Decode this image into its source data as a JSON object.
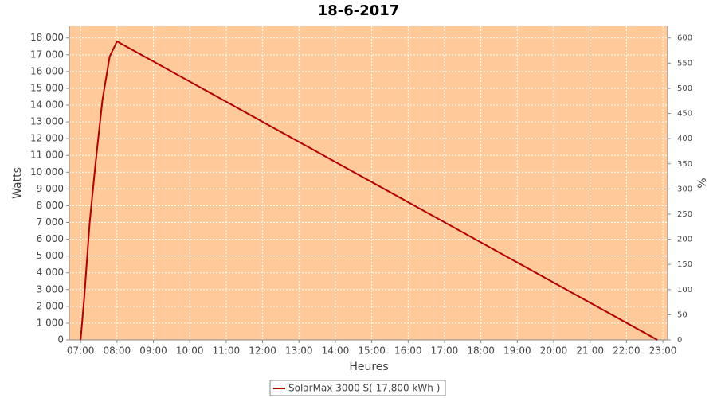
{
  "chart_data": {
    "type": "line",
    "title": "18-6-2017",
    "x_label": "Heures",
    "y_label": "Watts",
    "y2_label": "%",
    "x": [
      7.0,
      7.1,
      7.25,
      7.4,
      7.6,
      7.8,
      8.0,
      22.85
    ],
    "series": [
      {
        "name": "SolarMax 3000 S( 17,800 kWh )",
        "color": "#b00000",
        "values": [
          0,
          2500,
          7000,
          10300,
          14300,
          16900,
          17800,
          0
        ]
      }
    ],
    "xlim": [
      6.69,
      23.13
    ],
    "xticks": [
      {
        "value": 7,
        "label": "07:00"
      },
      {
        "value": 8,
        "label": "08:00"
      },
      {
        "value": 9,
        "label": "09:00"
      },
      {
        "value": 10,
        "label": "10:00"
      },
      {
        "value": 11,
        "label": "11:00"
      },
      {
        "value": 12,
        "label": "12:00"
      },
      {
        "value": 13,
        "label": "13:00"
      },
      {
        "value": 14,
        "label": "14:00"
      },
      {
        "value": 15,
        "label": "15:00"
      },
      {
        "value": 16,
        "label": "16:00"
      },
      {
        "value": 17,
        "label": "17:00"
      },
      {
        "value": 18,
        "label": "18:00"
      },
      {
        "value": 19,
        "label": "19:00"
      },
      {
        "value": 20,
        "label": "20:00"
      },
      {
        "value": 21,
        "label": "21:00"
      },
      {
        "value": 22,
        "label": "22:00"
      },
      {
        "value": 23,
        "label": "23:00"
      }
    ],
    "ylim": [
      0,
      18700
    ],
    "yticks": [
      0,
      {
        "value": 1000,
        "label": "1 000"
      },
      {
        "value": 2000,
        "label": "2 000"
      },
      {
        "value": 3000,
        "label": "3 000"
      },
      {
        "value": 4000,
        "label": "4 000"
      },
      {
        "value": 5000,
        "label": "5 000"
      },
      {
        "value": 6000,
        "label": "6 000"
      },
      {
        "value": 7000,
        "label": "7 000"
      },
      {
        "value": 8000,
        "label": "8 000"
      },
      {
        "value": 9000,
        "label": "9 000"
      },
      {
        "value": 10000,
        "label": "10 000"
      },
      {
        "value": 11000,
        "label": "11 000"
      },
      {
        "value": 12000,
        "label": "12 000"
      },
      {
        "value": 13000,
        "label": "13 000"
      },
      {
        "value": 14000,
        "label": "14 000"
      },
      {
        "value": 15000,
        "label": "15 000"
      },
      {
        "value": 16000,
        "label": "16 000"
      },
      {
        "value": 17000,
        "label": "17 000"
      },
      {
        "value": 18000,
        "label": "18 000"
      }
    ],
    "y2lim": [
      0,
      623.33
    ],
    "y2ticks": [
      0,
      50,
      100,
      150,
      200,
      250,
      300,
      350,
      400,
      450,
      500,
      550,
      600
    ],
    "grid": true,
    "legend": "bottom"
  }
}
